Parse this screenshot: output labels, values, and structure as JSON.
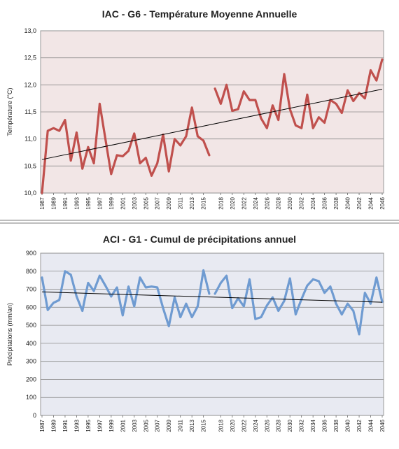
{
  "chart_data": [
    {
      "type": "line",
      "title": "IAC - G6 - Température Moyenne Annuelle",
      "xlabel": "",
      "ylabel": "Température (°C)",
      "ylim": [
        10.0,
        13.0
      ],
      "yticks": [
        "10,0",
        "10,5",
        "11,0",
        "11,5",
        "12,0",
        "12,5",
        "13,0"
      ],
      "xtick_labels": [
        "1987",
        "1989",
        "1991",
        "1993",
        "1995",
        "1997",
        "1999",
        "2001",
        "2003",
        "2005",
        "2007",
        "2009",
        "2011",
        "2013",
        "2015",
        "2018",
        "2020",
        "2022",
        "2024",
        "2026",
        "2028",
        "2030",
        "2032",
        "2034",
        "2036",
        "2038",
        "2040",
        "2042",
        "2044",
        "2046"
      ],
      "grid": true,
      "legend": "none",
      "background": "#f2e6e6",
      "line_color": "#c0504d",
      "trend_color": "#000000",
      "series": [
        {
          "x": [
            1987,
            1988,
            1989,
            1990,
            1991,
            1992,
            1993,
            1994,
            1995,
            1996,
            1997,
            1998,
            1999,
            2000,
            2001,
            2002,
            2003,
            2004,
            2005,
            2006,
            2007,
            2008,
            2009,
            2010,
            2011,
            2012,
            2013,
            2014,
            2015,
            2016,
            2017
          ],
          "values": [
            10.0,
            11.15,
            11.2,
            11.15,
            11.35,
            10.6,
            11.12,
            10.45,
            10.85,
            10.55,
            11.65,
            11.0,
            10.35,
            10.7,
            10.68,
            10.78,
            11.1,
            10.55,
            10.65,
            10.32,
            10.55,
            11.08,
            10.4,
            11.0,
            10.88,
            11.05,
            11.58,
            11.05,
            10.97,
            10.7,
            null
          ]
        },
        {
          "x": [
            2017,
            2018,
            2019,
            2020,
            2021,
            2022,
            2023,
            2024,
            2025,
            2026,
            2027,
            2028,
            2029,
            2030,
            2031,
            2032,
            2033,
            2034,
            2035,
            2036,
            2037,
            2038,
            2039,
            2040,
            2041,
            2042,
            2043,
            2044,
            2045,
            2046
          ],
          "values": [
            11.93,
            11.65,
            12.0,
            11.52,
            11.55,
            11.88,
            11.72,
            11.72,
            11.38,
            11.2,
            11.62,
            11.35,
            12.2,
            11.55,
            11.25,
            11.2,
            11.82,
            11.2,
            11.4,
            11.3,
            11.72,
            11.65,
            11.48,
            11.9,
            11.7,
            11.85,
            11.75,
            12.27,
            12.08,
            12.47
          ]
        }
      ],
      "trend": {
        "x": [
          1987,
          2046
        ],
        "values": [
          10.62,
          11.92
        ]
      }
    },
    {
      "type": "line",
      "title": "ACI - G1 - Cumul de précipitations annuel",
      "xlabel": "",
      "ylabel": "Précipitations (mm/an)",
      "ylim": [
        0,
        900
      ],
      "yticks": [
        "0",
        "100",
        "200",
        "300",
        "400",
        "500",
        "600",
        "700",
        "800",
        "900"
      ],
      "xtick_labels": [
        "1987",
        "1989",
        "1991",
        "1993",
        "1995",
        "1997",
        "1999",
        "2001",
        "2003",
        "2005",
        "2007",
        "2009",
        "2011",
        "2013",
        "2015",
        "2018",
        "2020",
        "2022",
        "2024",
        "2026",
        "2028",
        "2030",
        "2032",
        "2034",
        "2036",
        "2038",
        "2040",
        "2042",
        "2044",
        "2046"
      ],
      "grid": true,
      "legend": "none",
      "background": "#e8eaf2",
      "line_color": "#6f9bd1",
      "trend_color": "#000000",
      "series": [
        {
          "x": [
            1987,
            1988,
            1989,
            1990,
            1991,
            1992,
            1993,
            1994,
            1995,
            1996,
            1997,
            1998,
            1999,
            2000,
            2001,
            2002,
            2003,
            2004,
            2005,
            2006,
            2007,
            2008,
            2009,
            2010,
            2011,
            2012,
            2013,
            2014,
            2015,
            2016
          ],
          "values": [
            765,
            585,
            625,
            640,
            800,
            780,
            660,
            580,
            735,
            690,
            775,
            720,
            660,
            710,
            555,
            715,
            605,
            765,
            710,
            715,
            710,
            595,
            495,
            655,
            545,
            620,
            545,
            605,
            805,
            675
          ]
        },
        {
          "x": [
            2017,
            2018,
            2019,
            2020,
            2021,
            2022,
            2023,
            2024,
            2025,
            2026,
            2027,
            2028,
            2029,
            2030,
            2031,
            2032,
            2033,
            2034,
            2035,
            2036,
            2037,
            2038,
            2039,
            2040,
            2041,
            2042,
            2043,
            2044,
            2045,
            2046
          ],
          "values": [
            675,
            735,
            775,
            595,
            650,
            605,
            755,
            535,
            545,
            610,
            655,
            580,
            635,
            760,
            560,
            645,
            720,
            755,
            745,
            680,
            715,
            620,
            560,
            620,
            580,
            450,
            680,
            620,
            765,
            630
          ]
        }
      ],
      "trend": {
        "x": [
          1987,
          2046
        ],
        "values": [
          685,
          628
        ]
      }
    }
  ]
}
